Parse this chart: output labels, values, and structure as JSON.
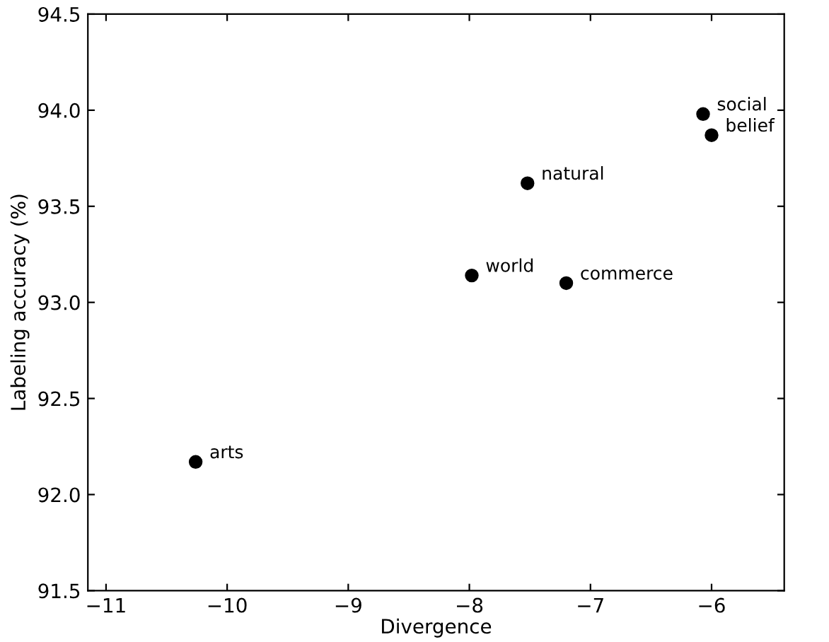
{
  "chart_data": {
    "type": "scatter",
    "xlabel": "Divergence",
    "ylabel": "Labeling accuracy (%)",
    "x": [
      -6.07,
      -6.0,
      -7.52,
      -7.98,
      -7.2,
      -10.26
    ],
    "values": [
      93.98,
      93.87,
      93.62,
      93.14,
      93.1,
      92.17
    ],
    "color": "#000000",
    "marker": "circle",
    "grid": false,
    "annotations": [
      {
        "text": "social",
        "x": -6.07,
        "y": 93.98
      },
      {
        "text": "belief",
        "x": -6.0,
        "y": 93.87
      },
      {
        "text": "natural",
        "x": -7.52,
        "y": 93.62
      },
      {
        "text": "world",
        "x": -7.98,
        "y": 93.14
      },
      {
        "text": "commerce",
        "x": -7.2,
        "y": 93.1
      },
      {
        "text": "arts",
        "x": -10.26,
        "y": 92.17
      }
    ],
    "xlim": [
      -11.15,
      -5.4
    ],
    "xticks": [
      {
        "value": -11,
        "label": "−11"
      },
      {
        "value": -10,
        "label": "−10"
      },
      {
        "value": -9,
        "label": "−9"
      },
      {
        "value": -8,
        "label": "−8"
      },
      {
        "value": -7,
        "label": "−7"
      },
      {
        "value": -6,
        "label": "−6"
      }
    ],
    "ylim": [
      91.5,
      94.5
    ],
    "yticks": [
      {
        "value": 91.5,
        "label": "91.5"
      },
      {
        "value": 92.0,
        "label": "92.0"
      },
      {
        "value": 92.5,
        "label": "92.5"
      },
      {
        "value": 93.0,
        "label": "93.0"
      },
      {
        "value": 93.5,
        "label": "93.5"
      },
      {
        "value": 94.0,
        "label": "94.0"
      },
      {
        "value": 94.5,
        "label": "94.5"
      }
    ]
  }
}
